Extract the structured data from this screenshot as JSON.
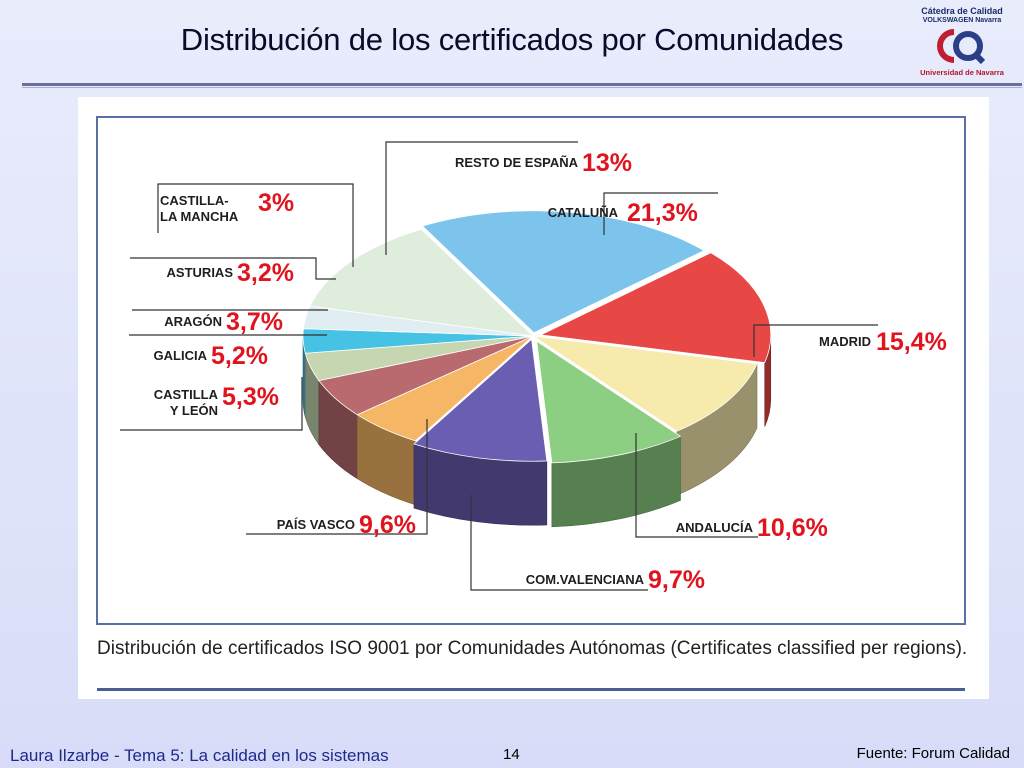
{
  "slide": {
    "title": "Distribución de los certificados por Comunidades",
    "caption": "Distribución de certificados ISO 9001 por Comunidades Autónomas (Certificates classified per regions).",
    "footer_left": "Laura Ilzarbe - Tema 5: La calidad en los sistemas",
    "page_number": "14",
    "footer_right": "Fuente: Forum Calidad"
  },
  "logo": {
    "line1": "Cátedra de Calidad",
    "line2": "VOLKSWAGEN Navarra",
    "line3": "Universidad de Navarra"
  },
  "chart_data": {
    "type": "pie",
    "title": "",
    "style": "3d-exploded",
    "slices": [
      {
        "label": "CATALUÑA",
        "value_label": "21,3%",
        "value": 21.3,
        "color": "#7cc4ec"
      },
      {
        "label": "MADRID",
        "value_label": "15,4%",
        "value": 15.4,
        "color": "#e84845"
      },
      {
        "label": "ANDALUCÍA",
        "value_label": "10,6%",
        "value": 10.6,
        "color": "#f6eaad"
      },
      {
        "label": "COM.VALENCIANA",
        "value_label": "9,7%",
        "value": 9.7,
        "color": "#8ccf82"
      },
      {
        "label": "PAÍS VASCO",
        "value_label": "9,6%",
        "value": 9.6,
        "color": "#6a5eb2"
      },
      {
        "label": "CASTILLA Y LEÓN",
        "value_label": "5,3%",
        "value": 5.3,
        "color": "#f5b765"
      },
      {
        "label": "GALICIA",
        "value_label": "5,2%",
        "value": 5.2,
        "color": "#b86a6f"
      },
      {
        "label": "ARAGÓN",
        "value_label": "3,7%",
        "value": 3.7,
        "color": "#c5d6b0"
      },
      {
        "label": "ASTURIAS",
        "value_label": "3,2%",
        "value": 3.2,
        "color": "#45c2e4"
      },
      {
        "label": "CASTILLA-LA MANCHA",
        "value_label": "3%",
        "value": 3.0,
        "color": "#e0eef3"
      },
      {
        "label": "RESTO DE ESPAÑA",
        "value_label": "13%",
        "value": 13.0,
        "color": "#dfeedc"
      }
    ]
  }
}
